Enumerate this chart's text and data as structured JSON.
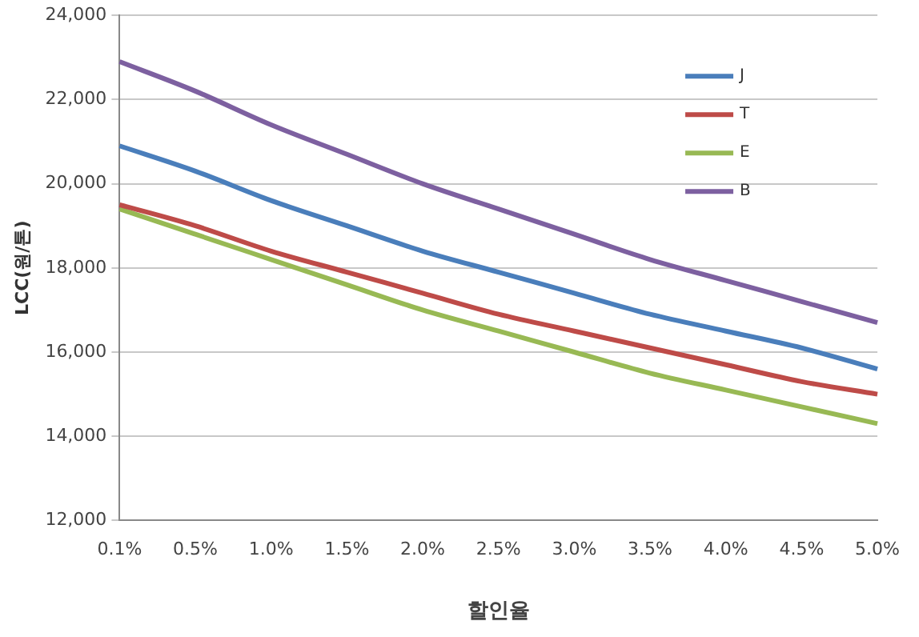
{
  "chart_data": {
    "type": "line",
    "xlabel": "할인율",
    "ylabel": "LCC(원/톤)",
    "categories": [
      "0.1%",
      "0.5%",
      "1.0%",
      "1.5%",
      "2.0%",
      "2.5%",
      "3.0%",
      "3.5%",
      "4.0%",
      "4.5%",
      "5.0%"
    ],
    "series": [
      {
        "name": "J",
        "color": "#4a7ebb",
        "values": [
          20900,
          20300,
          19600,
          19000,
          18400,
          17900,
          17400,
          16900,
          16500,
          16100,
          15600
        ]
      },
      {
        "name": "T",
        "color": "#be4b48",
        "values": [
          19500,
          19000,
          18400,
          17900,
          17400,
          16900,
          16500,
          16100,
          15700,
          15300,
          15000
        ]
      },
      {
        "name": "E",
        "color": "#98b954",
        "values": [
          19400,
          18800,
          18200,
          17600,
          17000,
          16500,
          16000,
          15500,
          15100,
          14700,
          14300
        ]
      },
      {
        "name": "B",
        "color": "#7d60a0",
        "values": [
          22900,
          22200,
          21400,
          20700,
          20000,
          19400,
          18800,
          18200,
          17700,
          17200,
          16700
        ]
      }
    ],
    "ylim": [
      12000,
      24000
    ],
    "yticks": [
      {
        "value": 12000,
        "label": "12,000"
      },
      {
        "value": 14000,
        "label": "14,000"
      },
      {
        "value": 16000,
        "label": "16,000"
      },
      {
        "value": 18000,
        "label": "18,000"
      },
      {
        "value": 20000,
        "label": "20,000"
      },
      {
        "value": 22000,
        "label": "22,000"
      },
      {
        "value": 24000,
        "label": "24,000"
      }
    ],
    "grid": "y",
    "legend": "top right",
    "marker": "none",
    "line_style": "solid"
  }
}
